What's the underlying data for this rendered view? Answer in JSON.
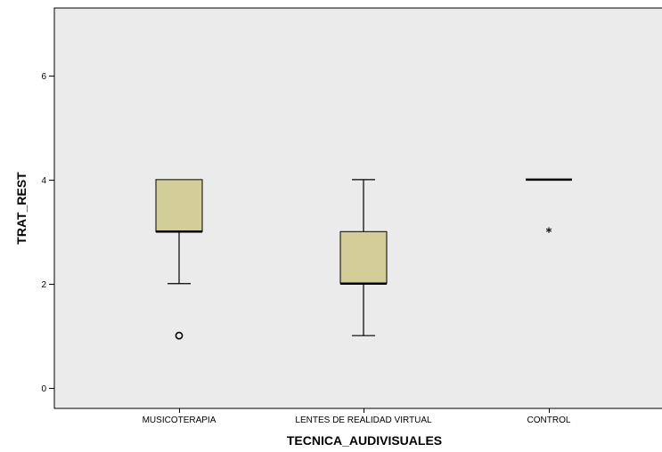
{
  "chart_data": {
    "type": "boxplot",
    "xlabel": "TECNICA_AUDIVISUALES",
    "ylabel": "TRAT_REST",
    "ylim": [
      -0.4,
      7.3
    ],
    "yticks": [
      0,
      2,
      4,
      6
    ],
    "categories": [
      "MUSICOTERAPIA",
      "LENTES DE REALIDAD VIRTUAL",
      "CONTROL"
    ],
    "boxes": [
      {
        "category": "MUSICOTERAPIA",
        "whisker_low": 2,
        "q1": 3,
        "median": 3,
        "q3": 4,
        "whisker_high": 4,
        "outliers": [
          {
            "value": 1,
            "symbol": "circle"
          }
        ]
      },
      {
        "category": "LENTES DE REALIDAD VIRTUAL",
        "whisker_low": 1,
        "q1": 2,
        "median": 2,
        "q3": 3,
        "whisker_high": 4,
        "outliers": []
      },
      {
        "category": "CONTROL",
        "whisker_low": 4,
        "q1": 4,
        "median": 4,
        "q3": 4,
        "whisker_high": 4,
        "outliers": [
          {
            "value": 3,
            "symbol": "star"
          }
        ]
      }
    ],
    "colors": {
      "plot_background": "#ebebeb",
      "box_fill": "#d3cd9a",
      "stroke": "#000000"
    },
    "grid": false,
    "legend": "none"
  }
}
